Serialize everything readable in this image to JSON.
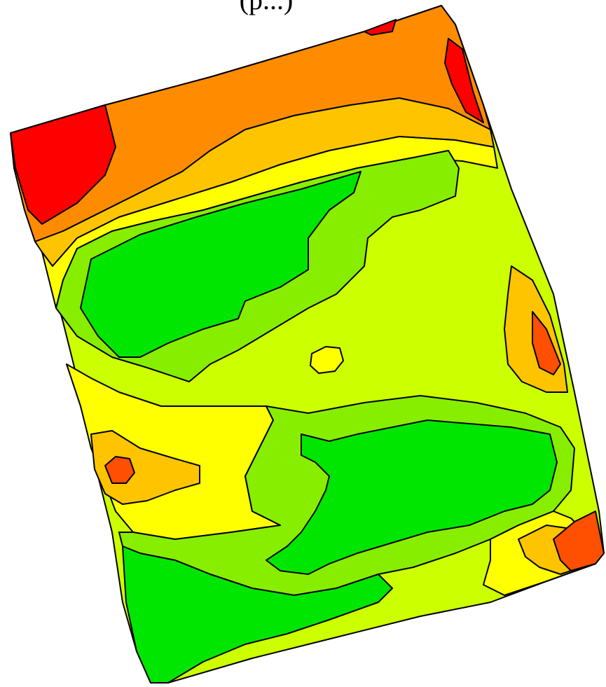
{
  "caption": "(p...)",
  "map": {
    "type": "contour-zone-map",
    "boundary_color": "#000000",
    "zone_colors": {
      "red": "#ff0000",
      "red_orange": "#ff4f00",
      "orange": "#ff8c00",
      "orange_yellow": "#ffc400",
      "yellow": "#ffff00",
      "yellow_green": "#ccff00",
      "light_green": "#88ee00",
      "green": "#00e600"
    }
  }
}
